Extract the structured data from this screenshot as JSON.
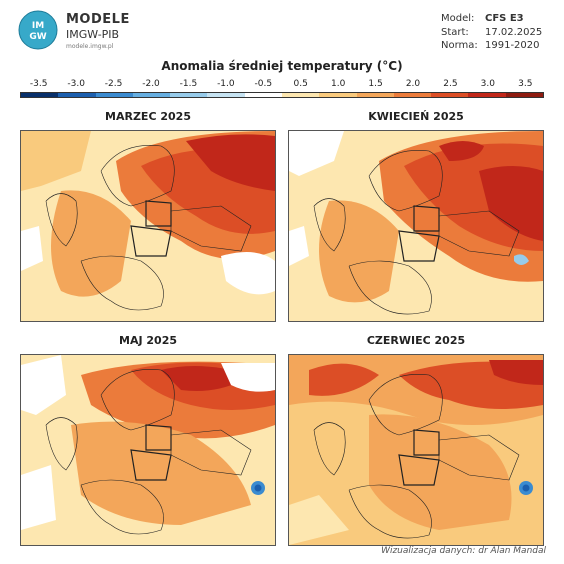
{
  "brand": {
    "logo_text": "IMGW",
    "name": "MODELE",
    "sub": "IMGW-PIB",
    "url": "modele.imgw.pl"
  },
  "meta": [
    {
      "label": "Model:",
      "value": "CFS E3"
    },
    {
      "label": "Start:",
      "value": "17.02.2025"
    },
    {
      "label": "Norma:",
      "value": "1991-2020"
    }
  ],
  "legend": {
    "title": "Anomalia średniej temperatury (°C)",
    "ticks": [
      "-3.5",
      "-3.0",
      "-2.5",
      "-2.0",
      "-1.5",
      "-1.0",
      "-0.5",
      "0.5",
      "1.0",
      "1.5",
      "2.0",
      "2.5",
      "3.0",
      "3.5"
    ],
    "colors": [
      "#08306b",
      "#1c5fae",
      "#3b8bd0",
      "#66aee0",
      "#97cbea",
      "#c6e3f2",
      "#ffffff",
      "#fde7b0",
      "#f9ca7d",
      "#f3a65a",
      "#eb7b3b",
      "#dc4e26",
      "#c1271a",
      "#8e1b10"
    ]
  },
  "panels": [
    {
      "title": "MARZEC 2025"
    },
    {
      "title": "KWIECIEŃ 2025"
    },
    {
      "title": "MAJ 2025"
    },
    {
      "title": "CZERWIEC 2025"
    }
  ],
  "credit": "Wizualizacja danych: dr Alan Mandal"
}
